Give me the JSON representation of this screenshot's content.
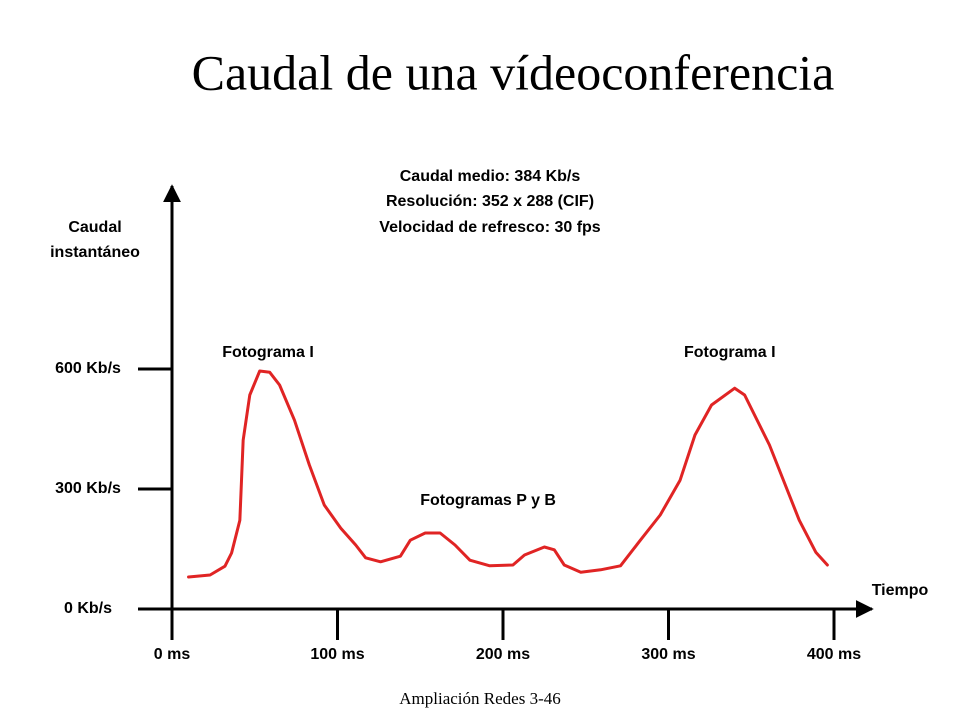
{
  "chart_data": {
    "type": "line",
    "title": "Caudal de una vídeoconferencia",
    "info": [
      "Caudal medio: 384 Kb/s",
      "Resolución: 352 x 288 (CIF)",
      "Velocidad de refresco: 30 fps"
    ],
    "y_label": [
      "Caudal",
      "instantáneo"
    ],
    "x_label": "Tiempo",
    "annotations": [
      {
        "text": "Fotograma I",
        "x": 58,
        "y": 640
      },
      {
        "text": "Fotograma I",
        "x": 337,
        "y": 640
      },
      {
        "text": "Fotogramas P y B",
        "x": 191,
        "y": 270
      }
    ],
    "footer": "Ampliación Redes 3-46",
    "x": [
      10,
      23,
      32,
      36,
      41,
      43,
      47,
      53,
      59,
      65,
      74,
      83,
      92,
      102,
      111,
      117,
      126,
      138,
      144,
      153,
      162,
      171,
      180,
      192,
      206,
      213,
      225,
      231,
      237,
      247,
      259,
      271,
      283,
      295,
      307,
      316,
      326,
      340,
      346,
      361,
      379,
      389,
      396
    ],
    "series": [
      {
        "color": "#e02424",
        "values": [
          80,
          85,
          107,
          140,
          222,
          422,
          535,
          595,
          592,
          560,
          472,
          360,
          260,
          202,
          160,
          128,
          118,
          132,
          172,
          190,
          190,
          160,
          122,
          108,
          110,
          135,
          155,
          148,
          110,
          92,
          98,
          108,
          172,
          235,
          322,
          435,
          510,
          552,
          535,
          410,
          222,
          142,
          110
        ]
      }
    ],
    "xlim": [
      0,
      420
    ],
    "ylim": [
      0,
      1050
    ],
    "xticks": [
      {
        "value": 0,
        "label": "0 ms"
      },
      {
        "value": 100,
        "label": "100 ms"
      },
      {
        "value": 200,
        "label": "200 ms"
      },
      {
        "value": 300,
        "label": "300 ms"
      },
      {
        "value": 400,
        "label": "400 ms"
      }
    ],
    "yticks": [
      {
        "value": 0,
        "label": "0 Kb/s"
      },
      {
        "value": 300,
        "label": "300 Kb/s"
      },
      {
        "value": 600,
        "label": "600 Kb/s"
      }
    ]
  }
}
